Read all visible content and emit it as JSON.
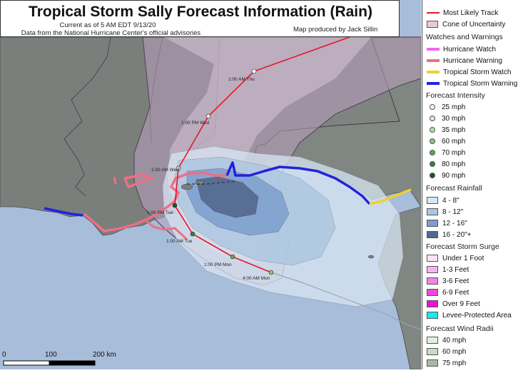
{
  "header": {
    "title": "Tropical Storm Sally Forecast Information (Rain)",
    "subtitle": "Current as of 5 AM EDT 9/13/20",
    "source": "Data from the National Hurricane Center's official advisories",
    "credit": "Map produced by Jack Sillin"
  },
  "track_labels": {
    "mon_4am": "4:00 AM Mon",
    "mon_1pm": "1:00 PM Mon",
    "tue_1am": "1:00 AM Tue",
    "tue_1pm": "1:00 PM Tue",
    "wed_1am": "1:00 AM Wed",
    "wed_1pm": "1:00 PM Wed",
    "thu_1am": "1:00 AM Thu"
  },
  "scale_bar": {
    "labels": [
      "0",
      "100",
      "200 km"
    ]
  },
  "legend": {
    "track": [
      {
        "label": "Most Likely Track",
        "color": "#e8162a",
        "icon": "red-track-line"
      },
      {
        "label": "Cone of Uncertainty",
        "color": "#e8ccd2",
        "icon": "cone-swatch"
      }
    ],
    "watches_title": "Watches and Warnings",
    "watches": [
      {
        "label": "Hurricane Watch",
        "color": "#ee66ee"
      },
      {
        "label": "Hurricane Warning",
        "color": "#ee6f83"
      },
      {
        "label": "Tropical Storm Watch",
        "color": "#f0d030"
      },
      {
        "label": "Tropical Storm Warning",
        "color": "#2222dd"
      }
    ],
    "intensity_title": "Forecast Intensity",
    "intensity": [
      {
        "label": "25 mph",
        "color": "#f4f4f4"
      },
      {
        "label": "30 mph",
        "color": "#d8ecd6"
      },
      {
        "label": "35 mph",
        "color": "#b4dcae"
      },
      {
        "label": "60 mph",
        "color": "#88c27e"
      },
      {
        "label": "70 mph",
        "color": "#5aa85a"
      },
      {
        "label": "80 mph",
        "color": "#33803f"
      },
      {
        "label": "90 mph",
        "color": "#145a27"
      }
    ],
    "rain_title": "Forecast Rainfall",
    "rain": [
      {
        "label": "4 - 8\"",
        "color": "#d8e6f2"
      },
      {
        "label": "8 - 12\"",
        "color": "#aac6e0"
      },
      {
        "label": "12 - 16\"",
        "color": "#7b9fcc"
      },
      {
        "label": "16 - 20\"+",
        "color": "#54688e"
      }
    ],
    "surge_title": "Forecast Storm Surge",
    "surge": [
      {
        "label": "Under 1 Foot",
        "color": "#fbe4f6"
      },
      {
        "label": "1-3 Feet",
        "color": "#f6b4ec"
      },
      {
        "label": "3-6 Feet",
        "color": "#f284e6"
      },
      {
        "label": "6-9 Feet",
        "color": "#ee48de"
      },
      {
        "label": "Over 9 Feet",
        "color": "#ea12d6"
      },
      {
        "label": "Levee-Protected Area",
        "color": "#16e8ee"
      }
    ],
    "wind_title": "Forecast Wind Radii",
    "wind": [
      {
        "label": "40 mph",
        "color": "#e2efe0"
      },
      {
        "label": "60 mph",
        "color": "#c6dcc4"
      },
      {
        "label": "75 mph",
        "color": "#a8baa6"
      }
    ]
  }
}
